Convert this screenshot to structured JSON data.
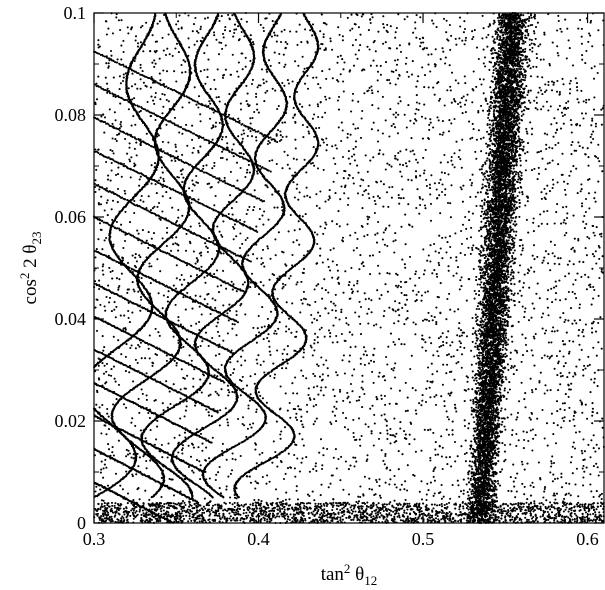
{
  "chart_data": {
    "type": "scatter",
    "title": "",
    "xlabel": {
      "base": "tan",
      "sup": "2",
      "symbol": " θ",
      "sub": "12"
    },
    "ylabel": {
      "base": "cos",
      "sup": "2",
      "symbol": " 2 θ",
      "sub": "23"
    },
    "xlim": [
      0.3,
      0.61
    ],
    "ylim": [
      0,
      0.1
    ],
    "x_ticks": [
      0.3,
      0.4,
      0.5,
      0.6
    ],
    "y_ticks": [
      0,
      0.02,
      0.04,
      0.06,
      0.08,
      0.1
    ],
    "x_tick_labels": [
      "0.3",
      "0.4",
      "0.5",
      "0.6"
    ],
    "y_tick_labels": [
      "0",
      "0.02",
      "0.04",
      "0.06",
      "0.08",
      "0.1"
    ],
    "grid": false,
    "legend": "none",
    "marker_color": "#000000",
    "series": [
      {
        "description": "dense vertical band of allowed points",
        "x_range": [
          0.51,
          0.58
        ],
        "x_center_at_low_y": 0.535,
        "x_center_at_high_y": 0.555,
        "y_range": [
          0,
          0.1
        ]
      },
      {
        "description": "oscillating curve families (loops)",
        "loop_centers_x": [
          0.33,
          0.35,
          0.37,
          0.39,
          0.41,
          0.43
        ],
        "y_range": [
          0.005,
          0.1
        ]
      },
      {
        "description": "background scattered points",
        "x_range": [
          0.3,
          0.61
        ],
        "y_range": [
          0,
          0.1
        ]
      },
      {
        "description": "concentration of points near y = 0",
        "x_range": [
          0.3,
          0.61
        ],
        "y_range": [
          0,
          0.004
        ]
      }
    ]
  }
}
